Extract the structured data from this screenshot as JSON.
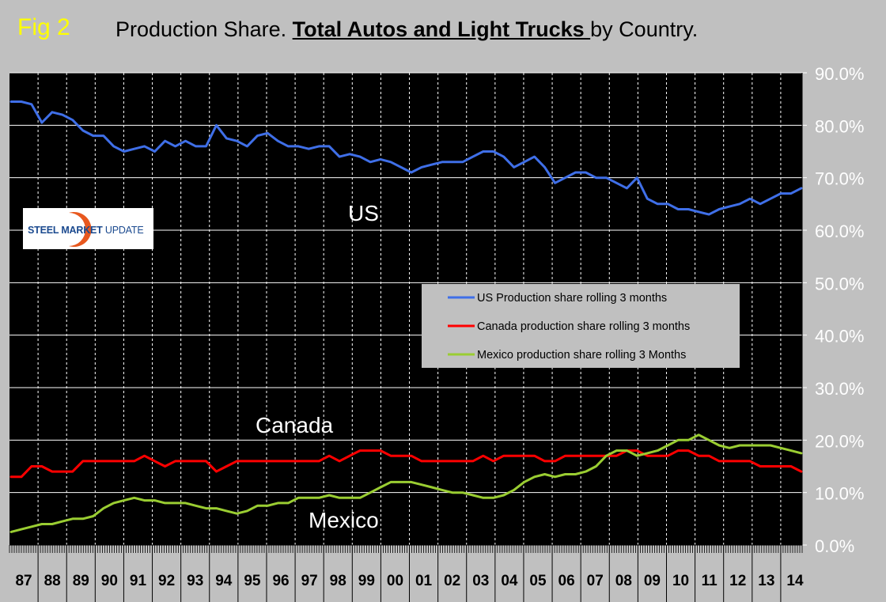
{
  "header": {
    "fig_label": "Fig 2",
    "title_prefix": "Production Share. ",
    "title_bold": "Total Autos and Light Trucks ",
    "title_suffix": "by Country."
  },
  "logo": {
    "text_main": "STEEL MARKET",
    "text_update": " UPDATE"
  },
  "colors": {
    "background": "#c0c0c0",
    "plot": "#000000",
    "us": "#3f6fe8",
    "canada": "#ff0000",
    "mexico": "#9acd32",
    "fig_label": "#ffff00",
    "legend_bg": "#c0c0c0"
  },
  "chart_data": {
    "type": "line",
    "title": "Production Share. Total Autos and Light Trucks by Country.",
    "ylim": [
      0,
      90
    ],
    "y_ticks": [
      "0.0%",
      "10.0%",
      "20.0%",
      "30.0%",
      "40.0%",
      "50.0%",
      "60.0%",
      "70.0%",
      "80.0%",
      "90.0%"
    ],
    "year_labels": [
      "87",
      "88",
      "89",
      "90",
      "91",
      "92",
      "93",
      "94",
      "95",
      "96",
      "97",
      "98",
      "99",
      "00",
      "01",
      "02",
      "03",
      "04",
      "05",
      "06",
      "07",
      "08",
      "09",
      "10",
      "11",
      "12",
      "13",
      "14"
    ],
    "annotations": {
      "us": "US",
      "canada": "Canada",
      "mexico": "Mexico"
    },
    "legend": [
      "US Production share rolling 3 months",
      "Canada production share rolling 3 months",
      "Mexico production share rolling 3 Months"
    ],
    "series": [
      {
        "name": "US Production share rolling 3 months",
        "key": "us",
        "values": [
          84.5,
          84.5,
          84,
          80.5,
          82.5,
          82,
          81,
          79,
          78,
          78,
          76,
          75,
          75.5,
          76,
          75,
          77,
          76,
          77,
          76,
          76,
          80,
          77.5,
          77,
          76,
          78,
          78.5,
          77,
          76,
          76,
          75.5,
          76,
          76,
          74,
          74.5,
          74,
          73,
          73.5,
          73,
          72,
          71,
          72,
          72.5,
          73,
          73,
          73,
          74,
          75,
          75,
          74,
          72,
          73,
          74,
          72,
          69,
          70,
          71,
          71,
          70,
          70,
          69,
          68,
          70,
          66,
          65,
          65,
          64,
          64,
          63.5,
          63,
          64,
          64.5,
          65,
          66,
          65,
          66,
          67,
          67,
          68
        ]
      },
      {
        "name": "Canada production share rolling 3 months",
        "key": "canada",
        "values": [
          13,
          13,
          15,
          15,
          14,
          14,
          14,
          16,
          16,
          16,
          16,
          16,
          16,
          17,
          16,
          15,
          16,
          16,
          16,
          16,
          14,
          15,
          16,
          16,
          16,
          16,
          16,
          16,
          16,
          16,
          16,
          17,
          16,
          17,
          18,
          18,
          18,
          17,
          17,
          17,
          16,
          16,
          16,
          16,
          16,
          16,
          17,
          16,
          17,
          17,
          17,
          17,
          16,
          16,
          17,
          17,
          17,
          17,
          17,
          17,
          18,
          18,
          17,
          17,
          17,
          18,
          18,
          17,
          17,
          16,
          16,
          16,
          16,
          15,
          15,
          15,
          15,
          14
        ]
      },
      {
        "name": "Mexico production share rolling 3 Months",
        "key": "mexico",
        "values": [
          2.5,
          3,
          3.5,
          4,
          4,
          4.5,
          5,
          5,
          5.5,
          7,
          8,
          8.5,
          9,
          8.5,
          8.5,
          8,
          8,
          8,
          7.5,
          7,
          7,
          6.5,
          6,
          6.5,
          7.5,
          7.5,
          8,
          8,
          9,
          9,
          9,
          9.5,
          9,
          9,
          9,
          10,
          11,
          12,
          12,
          12,
          11.5,
          11,
          10.5,
          10,
          10,
          9.5,
          9,
          9,
          9.5,
          10.5,
          12,
          13,
          13.5,
          13,
          13.5,
          13.5,
          14,
          15,
          17,
          18,
          18,
          17,
          17.5,
          18,
          19,
          20,
          20,
          21,
          20,
          19,
          18.5,
          19,
          19,
          19,
          19,
          18.5,
          18,
          17.5
        ]
      }
    ]
  }
}
